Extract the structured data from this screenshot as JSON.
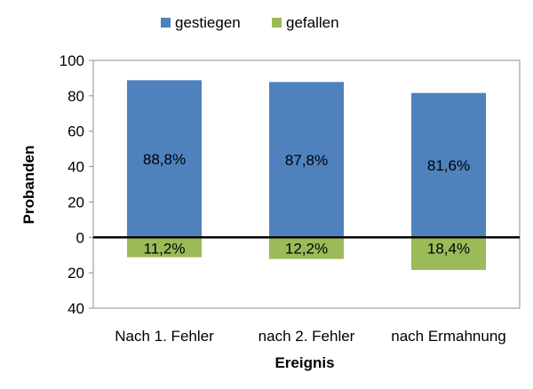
{
  "chart_data": {
    "type": "bar",
    "stacked": "diverging",
    "categories": [
      "Nach 1. Fehler",
      "nach 2. Fehler",
      "nach Ermahnung"
    ],
    "series": [
      {
        "name": "gestiegen",
        "values": [
          88.8,
          87.8,
          81.6
        ],
        "labels": [
          "88,8%",
          "87,8%",
          "81,6%"
        ],
        "color": "#4f81bd",
        "direction": "up"
      },
      {
        "name": "gefallen",
        "values": [
          11.2,
          12.2,
          18.4
        ],
        "labels": [
          "11,2%",
          "12,2%",
          "18,4%"
        ],
        "color": "#9bbb59",
        "direction": "down"
      }
    ],
    "yticks": [
      {
        "value": 100,
        "label": "100"
      },
      {
        "value": 80,
        "label": "80"
      },
      {
        "value": 60,
        "label": "60"
      },
      {
        "value": 40,
        "label": "40"
      },
      {
        "value": 20,
        "label": "20"
      },
      {
        "value": 0,
        "label": "0"
      },
      {
        "value": -20,
        "label": "20"
      },
      {
        "value": -40,
        "label": "40"
      }
    ],
    "ylim": [
      -40,
      100
    ],
    "xlabel": "Ereignis",
    "ylabel": "Probanden",
    "grid": false,
    "legend": "top"
  }
}
